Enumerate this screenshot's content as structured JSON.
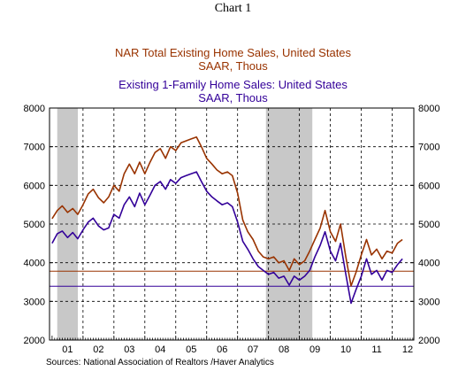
{
  "header": {
    "label": "Chart 1"
  },
  "legend": {
    "series1_title": "NAR Total Existing Home Sales, United States",
    "series1_units": "SAAR, Thous",
    "series2_title": "Existing 1-Family Home Sales: United States",
    "series2_units": "SAAR, Thous"
  },
  "source": "Sources:  National Association of Realtors /Haver Analytics",
  "colors": {
    "series1": "#993300",
    "series2": "#330099",
    "recession": "#c8c8c8",
    "frame": "#000000"
  },
  "chart_data": {
    "type": "line",
    "x_range": [
      2000.917,
      2012.7
    ],
    "ylim": [
      2000,
      8000
    ],
    "y_ticks": [
      2000,
      3000,
      4000,
      5000,
      6000,
      7000,
      8000
    ],
    "y_tick_labels": [
      "2000",
      "3000",
      "4000",
      "5000",
      "6000",
      "7000",
      "8000"
    ],
    "x_tick_labels": [
      {
        "label": "01",
        "x": 2001.5
      },
      {
        "label": "02",
        "x": 2002.5
      },
      {
        "label": "03",
        "x": 2003.5
      },
      {
        "label": "04",
        "x": 2004.5
      },
      {
        "label": "05",
        "x": 2005.5
      },
      {
        "label": "06",
        "x": 2006.5
      },
      {
        "label": "07",
        "x": 2007.5
      },
      {
        "label": "08",
        "x": 2008.5
      },
      {
        "label": "09",
        "x": 2009.5
      },
      {
        "label": "10",
        "x": 2010.5
      },
      {
        "label": "11",
        "x": 2011.5
      },
      {
        "label": "12",
        "x": 2012.5
      }
    ],
    "recessions": [
      [
        2001.167,
        2001.833
      ],
      [
        2007.917,
        2009.417
      ]
    ],
    "grid": {
      "horizontal": "dashed",
      "vertical": "dashed"
    },
    "reference_lines": [
      {
        "series": 0,
        "value": 3780
      },
      {
        "series": 1,
        "value": 3390
      }
    ],
    "series": [
      {
        "points": [
          [
            2001.0,
            5140
          ],
          [
            2001.17,
            5350
          ],
          [
            2001.33,
            5470
          ],
          [
            2001.5,
            5300
          ],
          [
            2001.67,
            5400
          ],
          [
            2001.83,
            5250
          ],
          [
            2002.0,
            5500
          ],
          [
            2002.17,
            5780
          ],
          [
            2002.33,
            5900
          ],
          [
            2002.5,
            5680
          ],
          [
            2002.67,
            5550
          ],
          [
            2002.83,
            5700
          ],
          [
            2003.0,
            6000
          ],
          [
            2003.17,
            5850
          ],
          [
            2003.33,
            6300
          ],
          [
            2003.5,
            6550
          ],
          [
            2003.67,
            6300
          ],
          [
            2003.83,
            6600
          ],
          [
            2004.0,
            6300
          ],
          [
            2004.17,
            6600
          ],
          [
            2004.33,
            6850
          ],
          [
            2004.5,
            6950
          ],
          [
            2004.67,
            6700
          ],
          [
            2004.83,
            7000
          ],
          [
            2005.0,
            6900
          ],
          [
            2005.17,
            7100
          ],
          [
            2005.33,
            7150
          ],
          [
            2005.5,
            7200
          ],
          [
            2005.67,
            7250
          ],
          [
            2005.83,
            7000
          ],
          [
            2006.0,
            6700
          ],
          [
            2006.17,
            6550
          ],
          [
            2006.33,
            6400
          ],
          [
            2006.5,
            6300
          ],
          [
            2006.67,
            6350
          ],
          [
            2006.83,
            6250
          ],
          [
            2007.0,
            5800
          ],
          [
            2007.17,
            5100
          ],
          [
            2007.33,
            4800
          ],
          [
            2007.5,
            4600
          ],
          [
            2007.67,
            4300
          ],
          [
            2007.83,
            4150
          ],
          [
            2008.0,
            4100
          ],
          [
            2008.17,
            4150
          ],
          [
            2008.33,
            4000
          ],
          [
            2008.5,
            4050
          ],
          [
            2008.67,
            3800
          ],
          [
            2008.83,
            4100
          ],
          [
            2009.0,
            3950
          ],
          [
            2009.17,
            4050
          ],
          [
            2009.33,
            4300
          ],
          [
            2009.5,
            4600
          ],
          [
            2009.67,
            4900
          ],
          [
            2009.83,
            5350
          ],
          [
            2010.0,
            4800
          ],
          [
            2010.17,
            4550
          ],
          [
            2010.33,
            5000
          ],
          [
            2010.5,
            4150
          ],
          [
            2010.67,
            3400
          ],
          [
            2010.83,
            3750
          ],
          [
            2011.0,
            4200
          ],
          [
            2011.17,
            4600
          ],
          [
            2011.33,
            4200
          ],
          [
            2011.5,
            4350
          ],
          [
            2011.67,
            4100
          ],
          [
            2011.83,
            4300
          ],
          [
            2012.0,
            4250
          ],
          [
            2012.17,
            4500
          ],
          [
            2012.33,
            4600
          ]
        ]
      },
      {
        "points": [
          [
            2001.0,
            4500
          ],
          [
            2001.17,
            4750
          ],
          [
            2001.33,
            4820
          ],
          [
            2001.5,
            4650
          ],
          [
            2001.67,
            4780
          ],
          [
            2001.83,
            4620
          ],
          [
            2002.0,
            4850
          ],
          [
            2002.17,
            5050
          ],
          [
            2002.33,
            5150
          ],
          [
            2002.5,
            4950
          ],
          [
            2002.67,
            4850
          ],
          [
            2002.83,
            4900
          ],
          [
            2003.0,
            5250
          ],
          [
            2003.17,
            5150
          ],
          [
            2003.33,
            5500
          ],
          [
            2003.5,
            5700
          ],
          [
            2003.67,
            5450
          ],
          [
            2003.83,
            5800
          ],
          [
            2004.0,
            5500
          ],
          [
            2004.17,
            5750
          ],
          [
            2004.33,
            6000
          ],
          [
            2004.5,
            6100
          ],
          [
            2004.67,
            5900
          ],
          [
            2004.83,
            6150
          ],
          [
            2005.0,
            6050
          ],
          [
            2005.17,
            6200
          ],
          [
            2005.33,
            6250
          ],
          [
            2005.5,
            6300
          ],
          [
            2005.67,
            6350
          ],
          [
            2005.83,
            6100
          ],
          [
            2006.0,
            5850
          ],
          [
            2006.17,
            5700
          ],
          [
            2006.33,
            5600
          ],
          [
            2006.5,
            5500
          ],
          [
            2006.67,
            5550
          ],
          [
            2006.83,
            5450
          ],
          [
            2007.0,
            5050
          ],
          [
            2007.17,
            4550
          ],
          [
            2007.33,
            4350
          ],
          [
            2007.5,
            4100
          ],
          [
            2007.67,
            3900
          ],
          [
            2007.83,
            3800
          ],
          [
            2008.0,
            3700
          ],
          [
            2008.17,
            3750
          ],
          [
            2008.33,
            3600
          ],
          [
            2008.5,
            3650
          ],
          [
            2008.67,
            3420
          ],
          [
            2008.83,
            3650
          ],
          [
            2009.0,
            3550
          ],
          [
            2009.17,
            3650
          ],
          [
            2009.33,
            3800
          ],
          [
            2009.5,
            4150
          ],
          [
            2009.67,
            4450
          ],
          [
            2009.83,
            4800
          ],
          [
            2010.0,
            4300
          ],
          [
            2010.17,
            4050
          ],
          [
            2010.33,
            4500
          ],
          [
            2010.5,
            3700
          ],
          [
            2010.67,
            2950
          ],
          [
            2010.83,
            3300
          ],
          [
            2011.0,
            3650
          ],
          [
            2011.17,
            4100
          ],
          [
            2011.33,
            3700
          ],
          [
            2011.5,
            3800
          ],
          [
            2011.67,
            3550
          ],
          [
            2011.83,
            3800
          ],
          [
            2012.0,
            3750
          ],
          [
            2012.17,
            3950
          ],
          [
            2012.33,
            4100
          ]
        ]
      }
    ]
  }
}
